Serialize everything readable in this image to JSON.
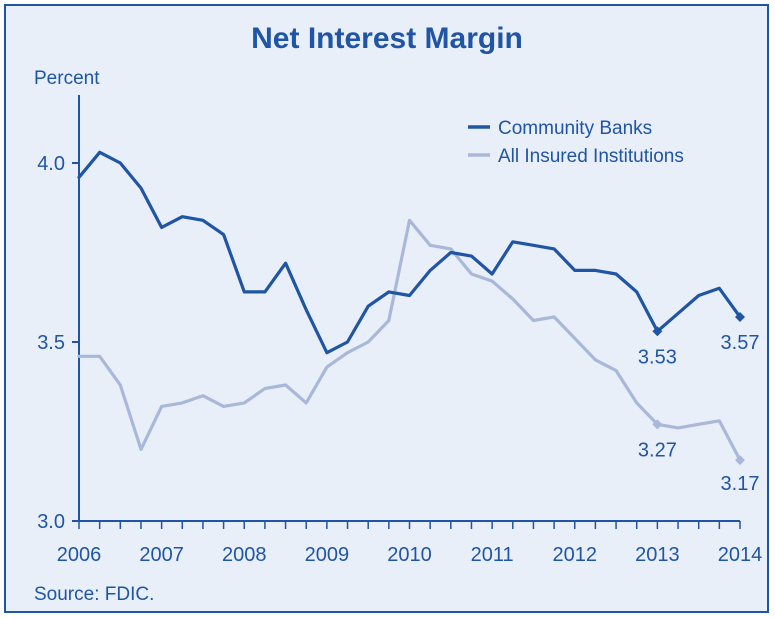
{
  "chart_data": {
    "type": "line",
    "title": "Net Interest Margin",
    "ylabel": "Percent",
    "source": "Source: FDIC.",
    "ylim": [
      3.0,
      4.2
    ],
    "yticks": [
      {
        "value": 3.0,
        "label": "3.0"
      },
      {
        "value": 3.5,
        "label": "3.5"
      },
      {
        "value": 4.0,
        "label": "4.0"
      }
    ],
    "xlim": [
      2006.0,
      2014.0
    ],
    "xticks": [
      {
        "value": 2006,
        "label": "2006"
      },
      {
        "value": 2007,
        "label": "2007"
      },
      {
        "value": 2008,
        "label": "2008"
      },
      {
        "value": 2009,
        "label": "2009"
      },
      {
        "value": 2010,
        "label": "2010"
      },
      {
        "value": 2011,
        "label": "2011"
      },
      {
        "value": 2012,
        "label": "2012"
      },
      {
        "value": 2013,
        "label": "2013"
      },
      {
        "value": 2014,
        "label": "2014"
      }
    ],
    "legend_position": "top-right",
    "series": [
      {
        "name": "Community Banks",
        "color": "#1f55a4",
        "points": [
          [
            2006.0,
            3.96
          ],
          [
            2006.25,
            4.03
          ],
          [
            2006.5,
            4.0
          ],
          [
            2006.75,
            3.93
          ],
          [
            2007.0,
            3.82
          ],
          [
            2007.25,
            3.85
          ],
          [
            2007.5,
            3.84
          ],
          [
            2007.75,
            3.8
          ],
          [
            2008.0,
            3.64
          ],
          [
            2008.25,
            3.64
          ],
          [
            2008.5,
            3.72
          ],
          [
            2008.75,
            3.59
          ],
          [
            2009.0,
            3.47
          ],
          [
            2009.25,
            3.5
          ],
          [
            2009.5,
            3.6
          ],
          [
            2009.75,
            3.64
          ],
          [
            2010.0,
            3.63
          ],
          [
            2010.25,
            3.7
          ],
          [
            2010.5,
            3.75
          ],
          [
            2010.75,
            3.74
          ],
          [
            2011.0,
            3.69
          ],
          [
            2011.25,
            3.78
          ],
          [
            2011.5,
            3.77
          ],
          [
            2011.75,
            3.76
          ],
          [
            2012.0,
            3.7
          ],
          [
            2012.25,
            3.7
          ],
          [
            2012.5,
            3.69
          ],
          [
            2012.75,
            3.64
          ],
          [
            2013.0,
            3.53
          ],
          [
            2013.25,
            3.58
          ],
          [
            2013.5,
            3.63
          ],
          [
            2013.75,
            3.65
          ],
          [
            2014.0,
            3.57
          ]
        ],
        "labels": [
          {
            "x": 2013.0,
            "y": 3.53,
            "text": "3.53"
          },
          {
            "x": 2014.0,
            "y": 3.57,
            "text": "3.57"
          }
        ]
      },
      {
        "name": "All Insured Institutions",
        "color": "#a9b8d9",
        "points": [
          [
            2006.0,
            3.46
          ],
          [
            2006.25,
            3.46
          ],
          [
            2006.5,
            3.38
          ],
          [
            2006.75,
            3.2
          ],
          [
            2007.0,
            3.32
          ],
          [
            2007.25,
            3.33
          ],
          [
            2007.5,
            3.35
          ],
          [
            2007.75,
            3.32
          ],
          [
            2008.0,
            3.33
          ],
          [
            2008.25,
            3.37
          ],
          [
            2008.5,
            3.38
          ],
          [
            2008.75,
            3.33
          ],
          [
            2009.0,
            3.43
          ],
          [
            2009.25,
            3.47
          ],
          [
            2009.5,
            3.5
          ],
          [
            2009.75,
            3.56
          ],
          [
            2010.0,
            3.84
          ],
          [
            2010.25,
            3.77
          ],
          [
            2010.5,
            3.76
          ],
          [
            2010.75,
            3.69
          ],
          [
            2011.0,
            3.67
          ],
          [
            2011.25,
            3.62
          ],
          [
            2011.5,
            3.56
          ],
          [
            2011.75,
            3.57
          ],
          [
            2012.0,
            3.51
          ],
          [
            2012.25,
            3.45
          ],
          [
            2012.5,
            3.42
          ],
          [
            2012.75,
            3.33
          ],
          [
            2013.0,
            3.27
          ],
          [
            2013.25,
            3.26
          ],
          [
            2013.5,
            3.27
          ],
          [
            2013.75,
            3.28
          ],
          [
            2014.0,
            3.17
          ]
        ],
        "labels": [
          {
            "x": 2013.0,
            "y": 3.27,
            "text": "3.27"
          },
          {
            "x": 2014.0,
            "y": 3.17,
            "text": "3.17"
          }
        ]
      }
    ]
  }
}
